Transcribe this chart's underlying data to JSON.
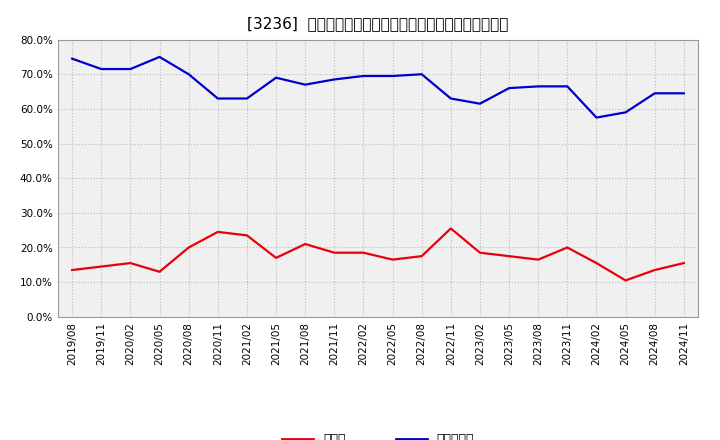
{
  "title": "[3236]  現預金、有利子負債の総資産に対する比率の推移",
  "x_labels": [
    "2019/08",
    "2019/11",
    "2020/02",
    "2020/05",
    "2020/08",
    "2020/11",
    "2021/02",
    "2021/05",
    "2021/08",
    "2021/11",
    "2022/02",
    "2022/05",
    "2022/08",
    "2022/11",
    "2023/02",
    "2023/05",
    "2023/08",
    "2023/11",
    "2024/02",
    "2024/05",
    "2024/08",
    "2024/11"
  ],
  "cash": [
    0.135,
    0.145,
    0.155,
    0.13,
    0.2,
    0.245,
    0.235,
    0.17,
    0.21,
    0.185,
    0.185,
    0.165,
    0.175,
    0.255,
    0.185,
    0.175,
    0.165,
    0.2,
    0.155,
    0.105,
    0.135,
    0.155
  ],
  "debt": [
    0.745,
    0.715,
    0.715,
    0.75,
    0.7,
    0.63,
    0.63,
    0.69,
    0.67,
    0.685,
    0.695,
    0.695,
    0.7,
    0.63,
    0.615,
    0.66,
    0.665,
    0.665,
    0.575,
    0.59,
    0.645,
    0.645
  ],
  "cash_color": "#e8000d",
  "debt_color": "#0000cc",
  "legend_cash": "現預金",
  "legend_debt": "有利子負債",
  "ylim": [
    0.0,
    0.8
  ],
  "yticks": [
    0.0,
    0.1,
    0.2,
    0.3,
    0.4,
    0.5,
    0.6,
    0.7,
    0.8
  ],
  "background_color": "#ffffff",
  "plot_bg_color": "#f0f0f0",
  "grid_color": "#bbbbbb",
  "title_fontsize": 11,
  "axis_fontsize": 7.5,
  "legend_fontsize": 9
}
